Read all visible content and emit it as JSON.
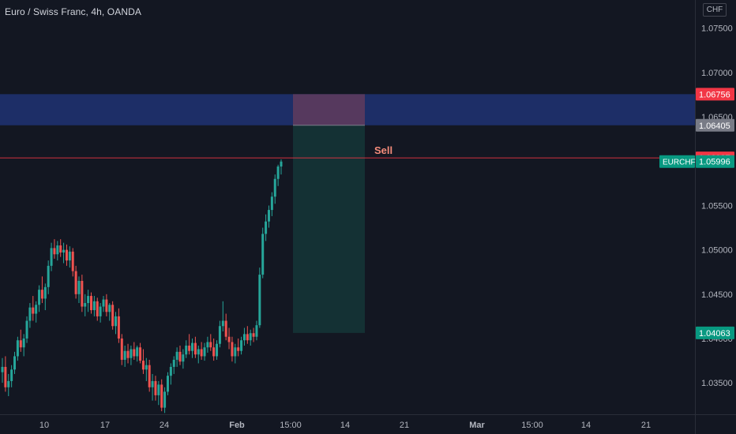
{
  "header": {
    "symbol_title": "Euro / Swiss Franc, 4h, OANDA",
    "currency": "CHF"
  },
  "chart_data": {
    "type": "candlestick",
    "symbol": "EURCHF",
    "interval": "4h",
    "ylim": [
      1.0315,
      1.076
    ],
    "y_ticks": [
      "1.03500",
      "1.04000",
      "1.04500",
      "1.05000",
      "1.05500",
      "1.06000",
      "1.06500",
      "1.07000",
      "1.07500"
    ],
    "x_ticks": [
      "10",
      "17",
      "24",
      "Feb",
      "15:00",
      "14",
      "21",
      "Mar",
      "15:00",
      "14",
      "21"
    ],
    "bold_x_ticks": [
      "Feb",
      "Mar"
    ],
    "candle_colors": {
      "up": "#26a69a",
      "down": "#ef5350"
    },
    "candles": [
      [
        1.0362,
        1.0378,
        1.035,
        1.0368
      ],
      [
        1.0368,
        1.038,
        1.034,
        1.0345
      ],
      [
        1.0345,
        1.036,
        1.0335,
        1.0352
      ],
      [
        1.0352,
        1.037,
        1.0345,
        1.0365
      ],
      [
        1.0365,
        1.0385,
        1.036,
        1.038
      ],
      [
        1.038,
        1.0402,
        1.0375,
        1.0398
      ],
      [
        1.0398,
        1.041,
        1.0385,
        1.039
      ],
      [
        1.039,
        1.0405,
        1.038,
        1.04
      ],
      [
        1.04,
        1.0425,
        1.0395,
        1.042
      ],
      [
        1.042,
        1.044,
        1.0412,
        1.0435
      ],
      [
        1.0435,
        1.0448,
        1.042,
        1.0428
      ],
      [
        1.0428,
        1.0442,
        1.0418,
        1.0438
      ],
      [
        1.0438,
        1.046,
        1.043,
        1.0455
      ],
      [
        1.0455,
        1.047,
        1.044,
        1.0445
      ],
      [
        1.0445,
        1.0462,
        1.0432,
        1.0458
      ],
      [
        1.0458,
        1.0488,
        1.045,
        1.0482
      ],
      [
        1.0482,
        1.0508,
        1.0476,
        1.0502
      ],
      [
        1.0502,
        1.0512,
        1.049,
        1.0495
      ],
      [
        1.0495,
        1.051,
        1.0488,
        1.0505
      ],
      [
        1.0505,
        1.0512,
        1.0492,
        1.0497
      ],
      [
        1.0497,
        1.0508,
        1.0485,
        1.05
      ],
      [
        1.05,
        1.0506,
        1.0482,
        1.0488
      ],
      [
        1.0488,
        1.0504,
        1.048,
        1.0498
      ],
      [
        1.0498,
        1.0502,
        1.047,
        1.0476
      ],
      [
        1.0476,
        1.0482,
        1.0445,
        1.045
      ],
      [
        1.045,
        1.047,
        1.044,
        1.0465
      ],
      [
        1.0465,
        1.0472,
        1.043,
        1.0436
      ],
      [
        1.0436,
        1.045,
        1.0425,
        1.044
      ],
      [
        1.044,
        1.0455,
        1.043,
        1.0448
      ],
      [
        1.0448,
        1.0452,
        1.0428,
        1.0432
      ],
      [
        1.0432,
        1.0448,
        1.0425,
        1.0442
      ],
      [
        1.0442,
        1.0446,
        1.042,
        1.0425
      ],
      [
        1.0425,
        1.044,
        1.0418,
        1.0436
      ],
      [
        1.0436,
        1.0448,
        1.043,
        1.0444
      ],
      [
        1.0444,
        1.045,
        1.0425,
        1.043
      ],
      [
        1.043,
        1.044,
        1.042,
        1.0438
      ],
      [
        1.0438,
        1.0442,
        1.041,
        1.0414
      ],
      [
        1.0414,
        1.043,
        1.0405,
        1.0425
      ],
      [
        1.0425,
        1.0434,
        1.0395,
        1.04
      ],
      [
        1.04,
        1.0405,
        1.037,
        1.0376
      ],
      [
        1.0376,
        1.0392,
        1.0368,
        1.0386
      ],
      [
        1.0386,
        1.0394,
        1.0372,
        1.0378
      ],
      [
        1.0378,
        1.0392,
        1.037,
        1.0388
      ],
      [
        1.0388,
        1.0396,
        1.0376,
        1.038
      ],
      [
        1.038,
        1.0392,
        1.0374,
        1.039
      ],
      [
        1.039,
        1.0395,
        1.0372,
        1.0375
      ],
      [
        1.0375,
        1.0388,
        1.036,
        1.0365
      ],
      [
        1.0365,
        1.0378,
        1.0352,
        1.037
      ],
      [
        1.037,
        1.0376,
        1.034,
        1.0345
      ],
      [
        1.0345,
        1.036,
        1.033,
        1.0352
      ],
      [
        1.0352,
        1.0358,
        1.033,
        1.0336
      ],
      [
        1.0336,
        1.0352,
        1.0325,
        1.0348
      ],
      [
        1.0348,
        1.0354,
        1.0318,
        1.0322
      ],
      [
        1.0322,
        1.0345,
        1.0316,
        1.034
      ],
      [
        1.034,
        1.0362,
        1.0336,
        1.0358
      ],
      [
        1.0358,
        1.0372,
        1.0348,
        1.0368
      ],
      [
        1.0368,
        1.038,
        1.036,
        1.0376
      ],
      [
        1.0376,
        1.039,
        1.0368,
        1.0385
      ],
      [
        1.0385,
        1.0392,
        1.037,
        1.0374
      ],
      [
        1.0374,
        1.0388,
        1.0366,
        1.0382
      ],
      [
        1.0382,
        1.0398,
        1.0378,
        1.0392
      ],
      [
        1.0392,
        1.0405,
        1.0382,
        1.0386
      ],
      [
        1.0386,
        1.04,
        1.0378,
        1.0395
      ],
      [
        1.0395,
        1.0402,
        1.0378,
        1.0382
      ],
      [
        1.0382,
        1.0392,
        1.0372,
        1.0388
      ],
      [
        1.0388,
        1.0396,
        1.0376,
        1.038
      ],
      [
        1.038,
        1.0395,
        1.0375,
        1.039
      ],
      [
        1.039,
        1.0402,
        1.0384,
        1.0396
      ],
      [
        1.0396,
        1.0405,
        1.0386,
        1.039
      ],
      [
        1.039,
        1.04,
        1.0375,
        1.038
      ],
      [
        1.038,
        1.0398,
        1.0376,
        1.0394
      ],
      [
        1.0394,
        1.042,
        1.039,
        1.0414
      ],
      [
        1.0414,
        1.0442,
        1.0408,
        1.042
      ],
      [
        1.042,
        1.0428,
        1.0398,
        1.0402
      ],
      [
        1.0402,
        1.0412,
        1.0388,
        1.0396
      ],
      [
        1.0396,
        1.0402,
        1.0374,
        1.038
      ],
      [
        1.038,
        1.0394,
        1.0372,
        1.039
      ],
      [
        1.039,
        1.04,
        1.038,
        1.0386
      ],
      [
        1.0386,
        1.0402,
        1.0382,
        1.0398
      ],
      [
        1.0398,
        1.0412,
        1.0392,
        1.0405
      ],
      [
        1.0405,
        1.0414,
        1.0394,
        1.0398
      ],
      [
        1.0398,
        1.041,
        1.0392,
        1.0406
      ],
      [
        1.0406,
        1.0412,
        1.0396,
        1.0402
      ],
      [
        1.0402,
        1.042,
        1.0398,
        1.0415
      ],
      [
        1.0415,
        1.048,
        1.0412,
        1.0472
      ],
      [
        1.0472,
        1.0525,
        1.0468,
        1.0518
      ],
      [
        1.0518,
        1.054,
        1.051,
        1.0532
      ],
      [
        1.0532,
        1.055,
        1.0525,
        1.0545
      ],
      [
        1.0545,
        1.0565,
        1.0538,
        1.056
      ],
      [
        1.056,
        1.0585,
        1.0552,
        1.058
      ],
      [
        1.058,
        1.0596,
        1.0572,
        1.0594
      ],
      [
        1.0594,
        1.0602,
        1.0585,
        1.05996
      ]
    ],
    "zones": {
      "resistance_zone": {
        "from": 1.06405,
        "to": 1.06756,
        "color": "#1e2f6b"
      },
      "stop_zone": {
        "from": 1.06405,
        "to": 1.06756,
        "color": "#5a3a5e"
      },
      "target_zone": {
        "from": 1.04063,
        "to": 1.06405,
        "color": "#143336"
      }
    },
    "position": {
      "label": "Sell",
      "entry": 1.06037,
      "stop": 1.06756,
      "target": 1.04063
    },
    "price_labels": [
      {
        "price": 1.06756,
        "text": "1.06756",
        "color": "#f23645"
      },
      {
        "price": 1.06405,
        "text": "1.06405",
        "color": "#787b86"
      },
      {
        "price": 1.06037,
        "text": "1.06037",
        "color": "#f23645"
      },
      {
        "price": 1.05996,
        "text": "1.05996",
        "color": "#089981"
      },
      {
        "price": 1.04063,
        "text": "1.04063",
        "color": "#089981"
      }
    ],
    "symbol_label": {
      "text": "EURCHF",
      "color": "#089981",
      "price": 1.05996
    }
  }
}
